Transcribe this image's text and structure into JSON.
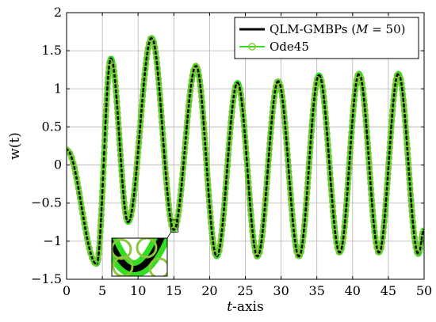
{
  "chart_data": {
    "type": "line",
    "xlabel_var": "t",
    "xlabel_rest": "-axis",
    "ylabel": "w(t)",
    "xlim": [
      0,
      50
    ],
    "ylim": [
      -1.5,
      2
    ],
    "xticks": [
      0,
      5,
      10,
      15,
      20,
      25,
      30,
      35,
      40,
      45,
      50
    ],
    "yticks": [
      -1.5,
      -1,
      -0.5,
      0,
      0.5,
      1,
      1.5,
      2
    ],
    "grid": true,
    "legend_position": "top-right",
    "series": [
      {
        "name": "QLM-GMBPs (M = 50)",
        "legend_main": "QLM-GMBPs (",
        "legend_var": "M",
        "legend_eq": " = 50)",
        "color": "#000000",
        "style": "solid"
      },
      {
        "name": "Ode45",
        "color": "#33dd22",
        "marker": "circle",
        "style": "solid"
      }
    ],
    "waveform_peaks": [
      [
        0,
        0.2
      ],
      [
        4.2,
        -1.3
      ],
      [
        6.2,
        1.4
      ],
      [
        8.6,
        -0.75
      ],
      [
        11.9,
        1.67
      ],
      [
        15.0,
        -0.85
      ],
      [
        18.1,
        1.3
      ],
      [
        21.0,
        -1.2
      ],
      [
        23.9,
        1.08
      ],
      [
        26.7,
        -1.2
      ],
      [
        29.6,
        1.1
      ],
      [
        32.5,
        -1.2
      ],
      [
        35.3,
        1.18
      ],
      [
        38.2,
        -1.15
      ],
      [
        40.9,
        1.2
      ],
      [
        43.7,
        -1.15
      ],
      [
        46.4,
        1.2
      ],
      [
        49.2,
        -1.17
      ],
      [
        50,
        -0.85
      ]
    ],
    "inset_zoom": {
      "x_range": [
        14.6,
        15.6
      ],
      "y_range": [
        -0.88,
        -0.72
      ]
    }
  }
}
